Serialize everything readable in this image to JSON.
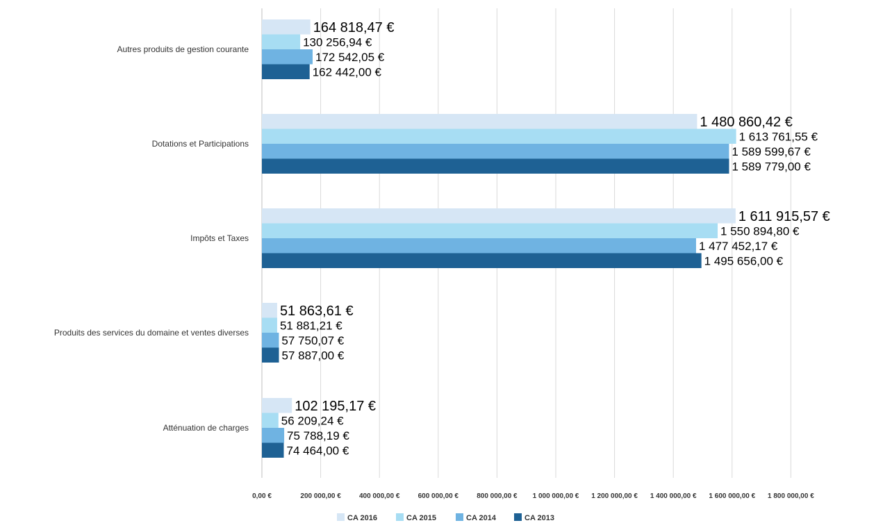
{
  "chart_data": {
    "type": "bar",
    "orientation": "horizontal",
    "categories": [
      "Autres produits de gestion courante",
      "Dotations et Participations",
      "Impôts et Taxes",
      "Produits des services du domaine et ventes diverses",
      "Atténuation de charges"
    ],
    "series": [
      {
        "name": "CA 2016",
        "color": "#d6e6f5",
        "values": [
          164818.47,
          1480860.42,
          1611915.57,
          51863.61,
          102195.17
        ],
        "labels": [
          "164 818,47 €",
          "1 480 860,42 €",
          "1 611 915,57 €",
          "51 863,61 €",
          "102 195,17 €"
        ]
      },
      {
        "name": "CA 2015",
        "color": "#a7ddf3",
        "values": [
          130256.94,
          1613761.55,
          1550894.8,
          51881.21,
          56209.24
        ],
        "labels": [
          "130 256,94 €",
          "1 613 761,55 €",
          "1 550 894,80 €",
          "51 881,21 €",
          "56 209,24 €"
        ]
      },
      {
        "name": "CA 2014",
        "color": "#6fb3e2",
        "values": [
          172542.05,
          1589599.67,
          1477452.17,
          57750.07,
          75788.19
        ],
        "labels": [
          "172 542,05 €",
          "1 589 599,67 €",
          "1 477 452,17 €",
          "57 750,07 €",
          "75 788,19 €"
        ]
      },
      {
        "name": "CA 2013",
        "color": "#1e6194",
        "values": [
          162442.0,
          1589779.0,
          1495656.0,
          57887.0,
          74464.0
        ],
        "labels": [
          "162 442,00 €",
          "1 589 779,00 €",
          "1 495 656,00 €",
          "57 887,00 €",
          "74 464,00 €"
        ]
      }
    ],
    "xlim": [
      0,
      1800000
    ],
    "xticks": [
      0,
      200000,
      400000,
      600000,
      800000,
      1000000,
      1200000,
      1400000,
      1600000,
      1800000
    ],
    "xtick_labels": [
      "0,00 €",
      "200 000,00 €",
      "400 000,00 €",
      "600 000,00 €",
      "800 000,00 €",
      "1 000 000,00 €",
      "1 200 000,00 €",
      "1 400 000,00 €",
      "1 600 000,00 €",
      "1 800 000,00 €"
    ],
    "grid": "vertical",
    "legend_position": "bottom",
    "title": "",
    "xlabel": "",
    "ylabel": ""
  }
}
